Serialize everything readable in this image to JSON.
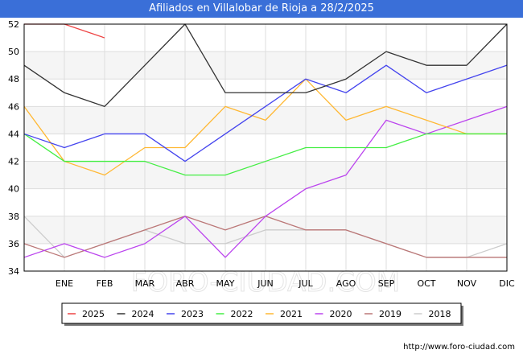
{
  "header": {
    "title": "Afiliados en Villalobar de Rioja a 28/2/2025"
  },
  "footer": {
    "url": "http://www.foro-ciudad.com"
  },
  "watermark": "FORO-CIUDAD.COM",
  "chart_data": {
    "type": "line",
    "title": "Afiliados en Villalobar de Rioja a 28/2/2025",
    "categories": [
      "",
      "ENE",
      "FEB",
      "MAR",
      "ABR",
      "MAY",
      "JUN",
      "JUL",
      "AGO",
      "SEP",
      "OCT",
      "NOV",
      "DIC"
    ],
    "ylim": [
      34,
      52
    ],
    "yticks": [
      34,
      36,
      38,
      40,
      42,
      44,
      46,
      48,
      50,
      52
    ],
    "grid": true,
    "legend_position": "bottom",
    "series": [
      {
        "name": "2025",
        "color": "#ee4444",
        "values": [
          52,
          52,
          51,
          null,
          null,
          null,
          null,
          null,
          null,
          null,
          null,
          null,
          null
        ]
      },
      {
        "name": "2024",
        "color": "#333333",
        "values": [
          49,
          47,
          46,
          49,
          52,
          47,
          47,
          47,
          48,
          50,
          49,
          49,
          52
        ]
      },
      {
        "name": "2023",
        "color": "#4444ee",
        "values": [
          44,
          43,
          44,
          44,
          42,
          44,
          46,
          48,
          47,
          49,
          47,
          48,
          49
        ]
      },
      {
        "name": "2022",
        "color": "#44ee44",
        "values": [
          44,
          42,
          42,
          42,
          41,
          41,
          42,
          43,
          43,
          43,
          44,
          44,
          44
        ]
      },
      {
        "name": "2021",
        "color": "#ffb833",
        "values": [
          46,
          42,
          41,
          43,
          43,
          46,
          45,
          48,
          45,
          46,
          45,
          44,
          44
        ]
      },
      {
        "name": "2020",
        "color": "#bb44ee",
        "values": [
          35,
          36,
          35,
          36,
          38,
          35,
          38,
          40,
          41,
          45,
          44,
          45,
          46
        ]
      },
      {
        "name": "2019",
        "color": "#bb7777",
        "values": [
          36,
          35,
          36,
          37,
          38,
          37,
          38,
          37,
          37,
          36,
          35,
          35,
          35
        ]
      },
      {
        "name": "2018",
        "color": "#cccccc",
        "values": [
          38,
          35,
          36,
          37,
          36,
          36,
          37,
          37,
          37,
          36,
          35,
          35,
          36
        ]
      }
    ]
  }
}
